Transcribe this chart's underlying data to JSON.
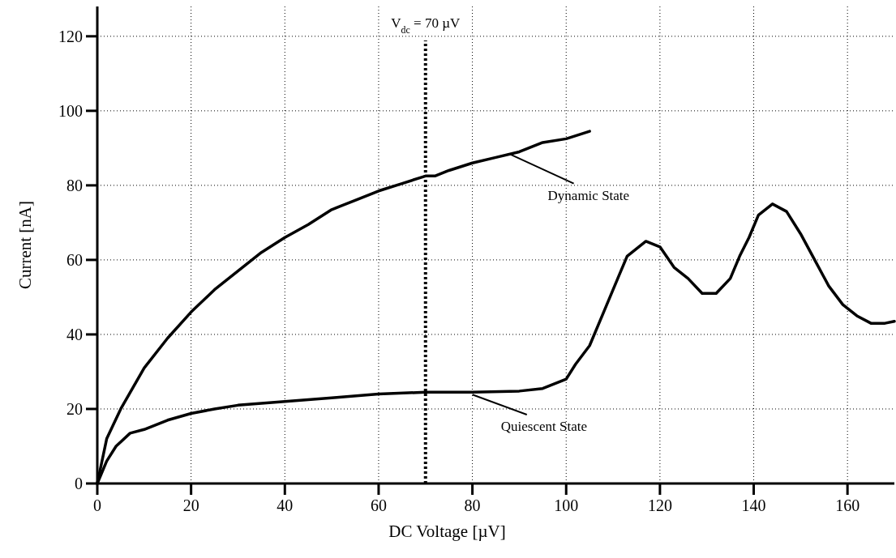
{
  "chart_data": {
    "type": "line",
    "xlabel": "DC Voltage [µV]",
    "ylabel": "Current [nA]",
    "xlim": [
      0,
      170
    ],
    "ylim": [
      0,
      128
    ],
    "xticks": [
      0,
      20,
      40,
      60,
      80,
      100,
      120,
      140,
      160
    ],
    "yticks": [
      0,
      20,
      40,
      60,
      80,
      100,
      120
    ],
    "grid": true,
    "legend": "right",
    "marker": "none",
    "line_style": "solid",
    "series": [
      {
        "name": "Dynamic State",
        "color": "#000000",
        "x": [
          0,
          2,
          5,
          10,
          15,
          20,
          25,
          30,
          35,
          40,
          45,
          50,
          55,
          60,
          65,
          70,
          72,
          75,
          80,
          85,
          90,
          95,
          100,
          105
        ],
        "values": [
          0,
          12,
          20,
          31,
          39,
          46,
          52,
          57,
          62,
          66,
          69.5,
          73.5,
          76,
          78.5,
          80.5,
          82.5,
          82.5,
          84,
          86,
          87.5,
          89,
          91.5,
          92.5,
          94.5
        ]
      },
      {
        "name": "Quiescent State",
        "color": "#000000",
        "x": [
          0,
          2,
          4,
          7,
          10,
          15,
          20,
          25,
          30,
          40,
          50,
          60,
          70,
          80,
          90,
          95,
          100,
          102,
          105,
          108,
          111,
          113,
          117,
          120,
          123,
          126,
          129,
          132,
          135,
          137,
          139,
          141,
          144,
          147,
          150,
          153,
          156,
          159,
          162,
          165,
          168,
          170
        ],
        "values": [
          0,
          6,
          10,
          13.5,
          14.5,
          17,
          18.8,
          20,
          21,
          22,
          23,
          24,
          24.5,
          24.5,
          24.8,
          25.5,
          28,
          32,
          37,
          46,
          55,
          61,
          65,
          63.5,
          58,
          55,
          51,
          51,
          55,
          61,
          66,
          72,
          75,
          73,
          67,
          60,
          53,
          48,
          45,
          43,
          43,
          43.5
        ]
      }
    ],
    "ref_lines": [
      {
        "axis": "x",
        "value": 70,
        "label": "V$_{dc}$ = 70 µV",
        "line_style": "dotted"
      }
    ]
  }
}
